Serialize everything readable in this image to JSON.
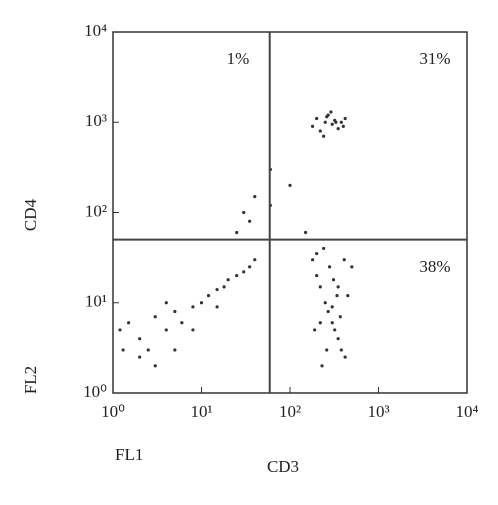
{
  "chart_data": {
    "type": "scatter",
    "x_label": "CD3",
    "y_label": "CD4",
    "x_channel": "FL1",
    "y_channel": "FL2",
    "log_x": true,
    "log_y": true,
    "xlim": [
      1,
      10000
    ],
    "ylim": [
      1,
      10000
    ],
    "xticks": [
      {
        "value": 1,
        "label": "10⁰"
      },
      {
        "value": 10,
        "label": "10¹"
      },
      {
        "value": 100,
        "label": "10²"
      },
      {
        "value": 1000,
        "label": "10³"
      },
      {
        "value": 10000,
        "label": "10⁴"
      }
    ],
    "yticks": [
      {
        "value": 1,
        "label": "10⁰"
      },
      {
        "value": 10,
        "label": "10¹"
      },
      {
        "value": 100,
        "label": "10²"
      },
      {
        "value": 1000,
        "label": "10³"
      },
      {
        "value": 10000,
        "label": "10⁴"
      }
    ],
    "gate_x": 59,
    "gate_y": 50,
    "quadrant_labels": {
      "upper_left": "1%",
      "upper_right": "31%",
      "lower_right": "38%"
    },
    "color": "#333333",
    "x": [
      180,
      200,
      220,
      250,
      270,
      300,
      320,
      350,
      380,
      420,
      240,
      290,
      330,
      260,
      400,
      180,
      200,
      220,
      250,
      270,
      300,
      320,
      350,
      380,
      420,
      450,
      500,
      200,
      240,
      280,
      310,
      340,
      370,
      260,
      230,
      190,
      410,
      300,
      350,
      220,
      1.2,
      1.5,
      2,
      2.5,
      3,
      4,
      5,
      6,
      8,
      10,
      12,
      15,
      18,
      20,
      25,
      30,
      35,
      40,
      2,
      3,
      5,
      8,
      1.3,
      4,
      15,
      30,
      40,
      25,
      60,
      100,
      150,
      35,
      60
    ],
    "y": [
      900,
      1100,
      800,
      1000,
      1200,
      950,
      1050,
      850,
      1000,
      1100,
      700,
      1300,
      1000,
      1150,
      900,
      30,
      20,
      15,
      10,
      8,
      6,
      5,
      4,
      3,
      2.5,
      12,
      25,
      35,
      40,
      25,
      18,
      12,
      7,
      3,
      2,
      5,
      30,
      9,
      15,
      6,
      5,
      6,
      4,
      3,
      7,
      5,
      8,
      6,
      9,
      10,
      12,
      14,
      15,
      18,
      20,
      22,
      25,
      30,
      2.5,
      2,
      3,
      5,
      3,
      10,
      9,
      100,
      150,
      60,
      300,
      200,
      60,
      80,
      120
    ]
  }
}
